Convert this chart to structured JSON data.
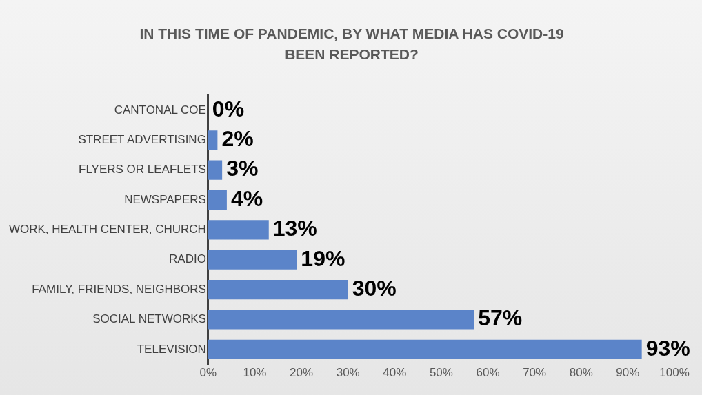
{
  "chart_data": {
    "type": "bar",
    "orientation": "horizontal",
    "title": "IN THIS TIME OF PANDEMIC, BY WHAT MEDIA HAS COVID-19 BEEN REPORTED?",
    "categories": [
      "CANTONAL COE",
      "STREET ADVERTISING",
      "FLYERS OR LEAFLETS",
      "NEWSPAPERS",
      "WORK, HEALTH CENTER, CHURCH",
      "RADIO",
      "FAMILY, FRIENDS, NEIGHBORS",
      "SOCIAL NETWORKS",
      "TELEVISION"
    ],
    "values": [
      0,
      2,
      3,
      4,
      13,
      19,
      30,
      57,
      93
    ],
    "value_labels": [
      "0%",
      "2%",
      "3%",
      "4%",
      "13%",
      "19%",
      "30%",
      "57%",
      "93%"
    ],
    "color": "#5b84c9",
    "xlim": [
      0,
      100
    ],
    "xticks": [
      {
        "value": 0,
        "label": "0%"
      },
      {
        "value": 10,
        "label": "10%"
      },
      {
        "value": 20,
        "label": "20%"
      },
      {
        "value": 30,
        "label": "30%"
      },
      {
        "value": 40,
        "label": "40%"
      },
      {
        "value": 50,
        "label": "50%"
      },
      {
        "value": 60,
        "label": "60%"
      },
      {
        "value": 70,
        "label": "70%"
      },
      {
        "value": 80,
        "label": "80%"
      },
      {
        "value": 90,
        "label": "90%"
      },
      {
        "value": 100,
        "label": "100%"
      }
    ],
    "grid": false
  }
}
